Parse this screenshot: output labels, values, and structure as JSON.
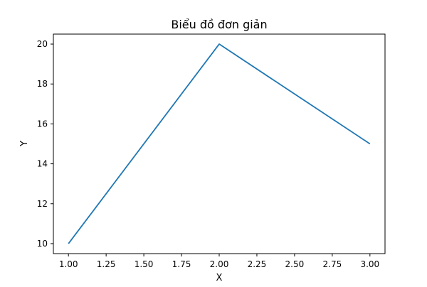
{
  "chart_data": {
    "type": "line",
    "title": "Biểu đồ đơn giản",
    "xlabel": "X",
    "ylabel": "Y",
    "x": [
      1,
      2,
      3
    ],
    "series": [
      {
        "values": [
          10,
          20,
          15
        ],
        "color": "#1f77b4"
      }
    ],
    "xlim": [
      0.9,
      3.1
    ],
    "ylim": [
      9.5,
      20.5
    ],
    "xticks": [
      "1.00",
      "1.25",
      "1.50",
      "1.75",
      "2.00",
      "2.25",
      "2.50",
      "2.75",
      "3.00"
    ],
    "yticks": [
      "10",
      "12",
      "14",
      "16",
      "18",
      "20"
    ],
    "grid": false,
    "legend": "none"
  }
}
